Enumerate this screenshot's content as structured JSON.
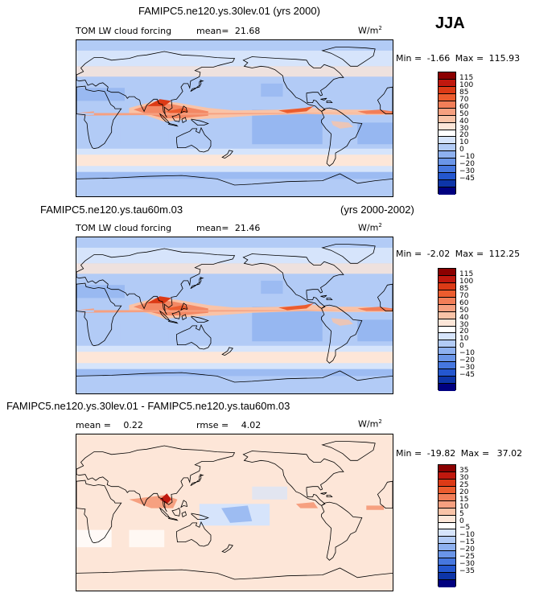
{
  "season": "JJA",
  "panels": [
    {
      "title_left": "FAMIPC5.ne120.ys.30lev.01 (yrs 2000)",
      "title_right": "",
      "var": "TOM LW cloud forcing",
      "mean_label": "mean=",
      "mean": "21.68",
      "rmse_label": "",
      "rmse": "",
      "units": "W/m",
      "units_sup": "2",
      "min_label": "Min =",
      "min": "-1.66",
      "max_label": "Max =",
      "max": "115.93",
      "colorbar_ticks": [
        "115",
        "100",
        "85",
        "70",
        "60",
        "50",
        "40",
        "30",
        "20",
        "10",
        "0",
        "−10",
        "−20",
        "−30",
        "−45"
      ],
      "colorbar_colors": [
        "#8b0000",
        "#c0180e",
        "#dc3a16",
        "#ec5c2e",
        "#f27e58",
        "#f6a080",
        "#f9c3a7",
        "#fde6d8",
        "#ffffff",
        "#d6e4fb",
        "#b2cbf6",
        "#8eb1f0",
        "#6a95e8",
        "#4677df",
        "#2457cf",
        "#0d35a8",
        "#000080"
      ]
    },
    {
      "title_left": "FAMIPC5.ne120.ys.tau60m.03",
      "title_right": "(yrs 2000-2002)",
      "var": "TOM LW cloud forcing",
      "mean_label": "mean=",
      "mean": "21.46",
      "rmse_label": "",
      "rmse": "",
      "units": "W/m",
      "units_sup": "2",
      "min_label": "Min =",
      "min": "-2.02",
      "max_label": "Max =",
      "max": "112.25",
      "colorbar_ticks": [
        "115",
        "100",
        "85",
        "70",
        "60",
        "50",
        "40",
        "30",
        "20",
        "10",
        "0",
        "−10",
        "−20",
        "−30",
        "−45"
      ],
      "colorbar_colors": [
        "#8b0000",
        "#c0180e",
        "#dc3a16",
        "#ec5c2e",
        "#f27e58",
        "#f6a080",
        "#f9c3a7",
        "#fde6d8",
        "#ffffff",
        "#d6e4fb",
        "#b2cbf6",
        "#8eb1f0",
        "#6a95e8",
        "#4677df",
        "#2457cf",
        "#0d35a8",
        "#000080"
      ]
    },
    {
      "title_left": "FAMIPC5.ne120.ys.30lev.01 - FAMIPC5.ne120.ys.tau60m.03",
      "title_right": "",
      "var": "",
      "mean_label": "mean =",
      "mean": "0.22",
      "rmse_label": "rmse =",
      "rmse": "4.02",
      "units": "W/m",
      "units_sup": "2",
      "min_label": "Min =",
      "min": "-19.82",
      "max_label": "Max =",
      "max": "37.02",
      "colorbar_ticks": [
        "35",
        "30",
        "25",
        "20",
        "15",
        "10",
        "5",
        "0",
        "−5",
        "−10",
        "−15",
        "−20",
        "−25",
        "−30",
        "−35"
      ],
      "colorbar_colors": [
        "#8b0000",
        "#c0180e",
        "#dc3a16",
        "#ec5c2e",
        "#f27e58",
        "#f6a080",
        "#f9c3a7",
        "#fde6d8",
        "#ffffff",
        "#d6e4fb",
        "#b2cbf6",
        "#8eb1f0",
        "#6a95e8",
        "#4677df",
        "#2457cf",
        "#0d35a8",
        "#000080"
      ]
    }
  ],
  "chart_data": [
    {
      "type": "heatmap",
      "map_kind": "field",
      "field_mean": 21.68,
      "field_min": -1.66,
      "field_max": 115.93
    },
    {
      "type": "heatmap",
      "map_kind": "field",
      "field_mean": 21.46,
      "field_min": -2.02,
      "field_max": 112.25
    },
    {
      "type": "heatmap",
      "map_kind": "difference",
      "field_mean": 0.22,
      "field_rmse": 4.02,
      "field_min": -19.82,
      "field_max": 37.02
    }
  ]
}
